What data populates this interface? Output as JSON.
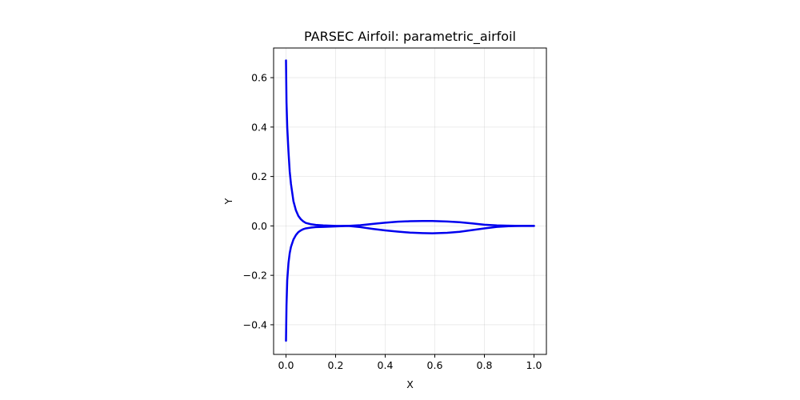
{
  "chart_data": {
    "type": "line",
    "title": "PARSEC Airfoil: parametric_airfoil",
    "xlabel": "X",
    "ylabel": "Y",
    "xlim": [
      -0.05,
      1.05
    ],
    "ylim": [
      -0.52,
      0.72
    ],
    "grid": true,
    "xticks": [
      0.0,
      0.2,
      0.4,
      0.6,
      0.8,
      1.0
    ],
    "xtick_labels": [
      "0.0",
      "0.2",
      "0.4",
      "0.6",
      "0.8",
      "1.0"
    ],
    "yticks": [
      -0.4,
      -0.2,
      0.0,
      0.2,
      0.4,
      0.6
    ],
    "ytick_labels": [
      "−0.4",
      "−0.2",
      "0.0",
      "0.2",
      "0.4",
      "0.6"
    ],
    "series": [
      {
        "color": "#0000ee",
        "x": [
          0.0,
          0.002,
          0.005,
          0.01,
          0.015,
          0.02,
          0.03,
          0.04,
          0.05,
          0.06,
          0.07,
          0.08,
          0.1,
          0.12,
          0.15,
          0.2,
          0.25,
          0.3,
          0.35,
          0.4,
          0.45,
          0.5,
          0.55,
          0.59,
          0.65,
          0.7,
          0.75,
          0.8,
          0.85,
          0.9,
          0.95,
          1.0
        ],
        "y": [
          0.67,
          0.5,
          0.4,
          0.3,
          0.22,
          0.17,
          0.1,
          0.063,
          0.04,
          0.027,
          0.018,
          0.012,
          0.007,
          0.004,
          0.002,
          0.0,
          0.0,
          0.003,
          0.008,
          0.013,
          0.017,
          0.019,
          0.02,
          0.02,
          0.018,
          0.015,
          0.01,
          0.005,
          0.002,
          0.001,
          0.0,
          0.0
        ]
      },
      {
        "color": "#0000ee",
        "x": [
          0.0,
          0.002,
          0.005,
          0.01,
          0.015,
          0.02,
          0.03,
          0.04,
          0.05,
          0.06,
          0.07,
          0.08,
          0.1,
          0.12,
          0.15,
          0.2,
          0.25,
          0.3,
          0.35,
          0.4,
          0.45,
          0.5,
          0.55,
          0.59,
          0.65,
          0.7,
          0.75,
          0.8,
          0.85,
          0.9,
          0.95,
          1.0
        ],
        "y": [
          -0.465,
          -0.32,
          -0.22,
          -0.15,
          -0.11,
          -0.085,
          -0.055,
          -0.037,
          -0.025,
          -0.018,
          -0.013,
          -0.01,
          -0.007,
          -0.005,
          -0.004,
          -0.002,
          0.0,
          -0.005,
          -0.012,
          -0.018,
          -0.023,
          -0.027,
          -0.029,
          -0.03,
          -0.028,
          -0.024,
          -0.017,
          -0.01,
          -0.004,
          -0.001,
          0.0,
          0.0
        ]
      }
    ]
  }
}
